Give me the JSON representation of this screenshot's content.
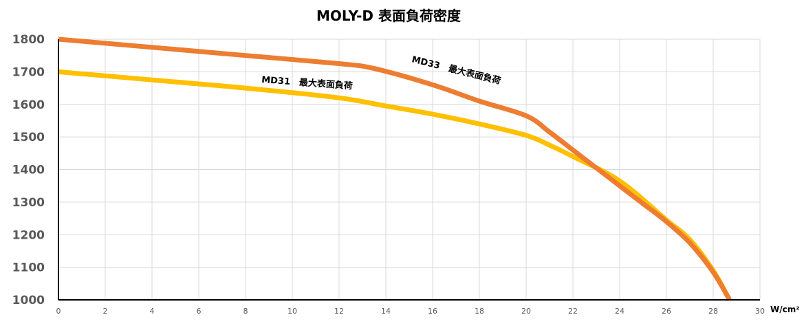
{
  "chart_data": {
    "type": "line",
    "title": "MOLY-D  表面負荷密度",
    "x_unit": "W/cm²",
    "xlim": [
      0,
      30
    ],
    "ylim": [
      1000,
      1800
    ],
    "x_ticks": [
      "0",
      "2",
      "4",
      "6",
      "8",
      "10",
      "12",
      "14",
      "16",
      "18",
      "20",
      "22",
      "24",
      "26",
      "28",
      "30"
    ],
    "y_ticks": [
      "1800",
      "1700",
      "1600",
      "1500",
      "1400",
      "1300",
      "1200",
      "1100",
      "1000"
    ],
    "grid": true,
    "series": [
      {
        "name": "MD33　最大表面負荷",
        "color": "#ED7D31",
        "x": [
          0,
          4,
          8,
          12,
          13.5,
          16,
          18,
          20,
          21,
          22,
          23,
          24,
          25,
          26,
          27,
          28,
          28.7
        ],
        "y": [
          1800,
          1775,
          1750,
          1725,
          1710,
          1660,
          1610,
          1565,
          1515,
          1460,
          1405,
          1350,
          1295,
          1240,
          1175,
          1085,
          1000
        ]
      },
      {
        "name": "MD31　最大表面負荷",
        "color": "#FFC000",
        "x": [
          0,
          4,
          8,
          12,
          14,
          16,
          18,
          20,
          21,
          22,
          24,
          26,
          27,
          28,
          28.7
        ],
        "y": [
          1700,
          1675,
          1650,
          1620,
          1595,
          1570,
          1540,
          1505,
          1475,
          1440,
          1365,
          1245,
          1185,
          1090,
          1000
        ]
      }
    ]
  }
}
